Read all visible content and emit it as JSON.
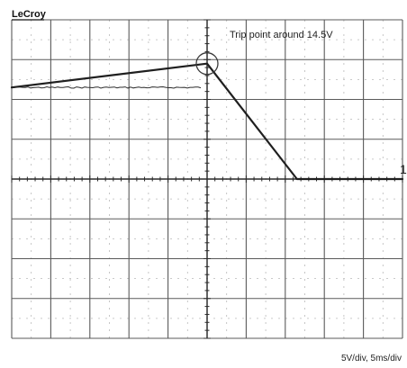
{
  "brand": {
    "logo_text": "LeCroy"
  },
  "annotation": {
    "text": "Trip point around 14.5V"
  },
  "scale_readout": "5V/div, 5ms/div",
  "trace_marker": "1",
  "chart_data": {
    "type": "line",
    "title": "",
    "xlabel": "",
    "ylabel": "",
    "x_unit": "ms",
    "y_unit": "V",
    "volts_per_div": 5,
    "ms_per_div": 5,
    "xlim": [
      -25,
      25
    ],
    "ylim": [
      -20,
      20
    ],
    "grid": true,
    "series": [
      {
        "x": [
          -25,
          0,
          11.5,
          25
        ],
        "y": [
          11.5,
          14.5,
          0,
          0
        ]
      }
    ],
    "annotations": [
      {
        "x": 0,
        "y": 14.5,
        "text": "Trip point around 14.5V"
      }
    ]
  }
}
